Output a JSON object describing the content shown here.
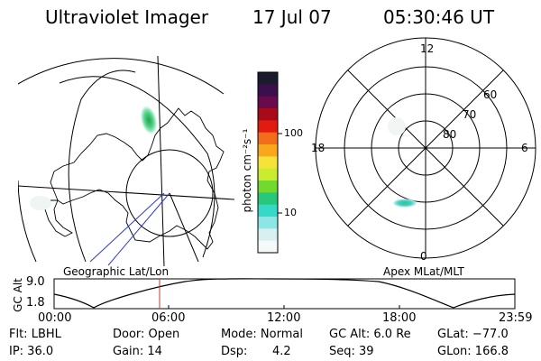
{
  "header": {
    "title": "Ultraviolet Imager",
    "date": "17 Jul 07",
    "time": "05:30:46 UT"
  },
  "colorbar": {
    "unit_label": "photon cm⁻²s⁻¹",
    "tick_labels": [
      "100",
      "10"
    ],
    "colors": [
      "#1b1b2e",
      "#3a0f4c",
      "#6b0a4a",
      "#a80a1a",
      "#e21b10",
      "#f36e1a",
      "#f9a81e",
      "#f6e33a",
      "#c9ec2e",
      "#73d92f",
      "#27c77c",
      "#36d8c8",
      "#8de6e6",
      "#d8f0f0",
      "#f4f9f9"
    ]
  },
  "left_panel": {
    "label": "Geographic Lat/Lon"
  },
  "right_panel": {
    "label": "Apex MLat/MLT",
    "mlt_labels": {
      "top": "12",
      "left": "18",
      "right": "6",
      "bottom": "0"
    },
    "mlat_labels": [
      "60",
      "70",
      "80"
    ]
  },
  "altitude_plot": {
    "ylabel": "GC Alt",
    "ytick_labels": [
      "9.0",
      "1.8"
    ],
    "xtick_labels": [
      "00:00",
      "06:00",
      "12:00",
      "18:00",
      "23:59"
    ],
    "current_time_marker_color": "#c0392b"
  },
  "info": {
    "filter": "Flt: LBHL",
    "ip": "IP: 36.0",
    "door": "Door: Open",
    "gain": "Gain: 14",
    "mode": "Mode: Normal",
    "dsp": "Dsp:",
    "dsp_value": "4.2",
    "gc_alt": "GC Alt: 6.0 Re",
    "seq": "Seq: 39",
    "glat": "GLat: −77.0",
    "glon": "GLon: 166.8"
  }
}
